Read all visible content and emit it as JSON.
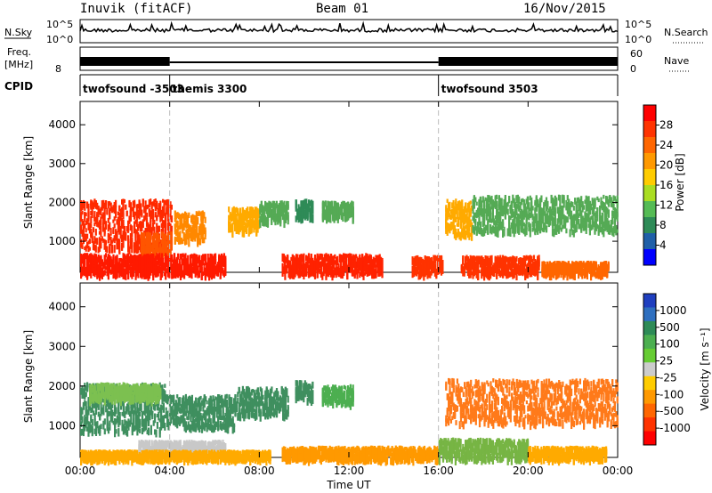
{
  "header": {
    "radar": "Inuvik (fitACF)",
    "beam": "Beam 01",
    "date": "16/Nov/2015"
  },
  "noise_panel": {
    "left_label": "N.Sky",
    "right_label": "N.Search",
    "left_ticks": [
      "10^5",
      "10^0"
    ],
    "right_ticks": [
      "10^5",
      "10^0"
    ]
  },
  "freq_panel": {
    "left_label_1": "Freq.",
    "left_label_2": "[MHz]",
    "right_label": "Nave",
    "left_ticks": [
      "8"
    ],
    "right_ticks": [
      "60",
      "0"
    ]
  },
  "cpid_panel": {
    "label": "CPID",
    "segments": [
      {
        "name": "twofsound -3503",
        "start_hour": 0,
        "end_hour": 4
      },
      {
        "name": "themis 3300",
        "start_hour": 4,
        "end_hour": 16
      },
      {
        "name": "twofsound 3503",
        "start_hour": 16,
        "end_hour": 24
      }
    ]
  },
  "chart_data": [
    {
      "type": "heatmap",
      "name": "power",
      "ylabel": "Slant Range [km]",
      "xlabel": "",
      "x_range_hours": [
        0,
        24
      ],
      "ylim": [
        200,
        4600
      ],
      "yticks": [
        "1000",
        "2000",
        "3000",
        "4000"
      ],
      "colorbar": {
        "label": "Power [dB]",
        "ticks": [
          "28",
          "24",
          "20",
          "16",
          "12",
          "8",
          "4"
        ],
        "colors_top_to_bottom": [
          "#ff0000",
          "#ff3300",
          "#ff6600",
          "#ff9900",
          "#ffcc00",
          "#aadd22",
          "#55bb55",
          "#2e8b57",
          "#1f5fa8",
          "#0000ff"
        ]
      },
      "echo_regions": [
        {
          "t0": 0.0,
          "t1": 4.1,
          "r0": 850,
          "r1": 2100,
          "color": "#ff2a00"
        },
        {
          "t0": 2.7,
          "t1": 4.1,
          "r0": 700,
          "r1": 1250,
          "color": "#ff5500"
        },
        {
          "t0": 0.0,
          "t1": 6.5,
          "r0": 200,
          "r1": 700,
          "color": "#ff1a00"
        },
        {
          "t0": 4.2,
          "t1": 5.6,
          "r0": 1050,
          "r1": 1800,
          "color": "#ff8800"
        },
        {
          "t0": 6.6,
          "t1": 8.0,
          "r0": 1300,
          "r1": 1900,
          "color": "#ffaa00"
        },
        {
          "t0": 8.0,
          "t1": 9.3,
          "r0": 1550,
          "r1": 2050,
          "color": "#55aa55"
        },
        {
          "t0": 9.6,
          "t1": 10.4,
          "r0": 1650,
          "r1": 2100,
          "color": "#2e8b57"
        },
        {
          "t0": 10.8,
          "t1": 12.2,
          "r0": 1650,
          "r1": 2050,
          "color": "#55aa55"
        },
        {
          "t0": 9.0,
          "t1": 13.5,
          "r0": 200,
          "r1": 700,
          "color": "#ff2200"
        },
        {
          "t0": 14.8,
          "t1": 16.2,
          "r0": 200,
          "r1": 650,
          "color": "#ff3300"
        },
        {
          "t0": 16.3,
          "t1": 17.5,
          "r0": 1200,
          "r1": 2100,
          "color": "#ffaa00"
        },
        {
          "t0": 17.5,
          "t1": 24.0,
          "r0": 1300,
          "r1": 2200,
          "color": "#55aa55"
        },
        {
          "t0": 17.0,
          "t1": 20.5,
          "r0": 200,
          "r1": 650,
          "color": "#ff3300"
        },
        {
          "t0": 20.6,
          "t1": 23.6,
          "r0": 200,
          "r1": 500,
          "color": "#ff6600"
        }
      ]
    },
    {
      "type": "heatmap",
      "name": "velocity",
      "ylabel": "Slant Range [km]",
      "xlabel": "Time UT",
      "x_range_hours": [
        0,
        24
      ],
      "xticks": [
        "00:00",
        "04:00",
        "08:00",
        "12:00",
        "16:00",
        "20:00",
        "00:00"
      ],
      "ylim": [
        200,
        4600
      ],
      "yticks": [
        "1000",
        "2000",
        "3000",
        "4000"
      ],
      "colorbar": {
        "label": "Velocity [m s⁻¹]",
        "ticks": [
          "1000",
          "500",
          "100",
          "25",
          "-25",
          "-100",
          "-500",
          "-1000"
        ],
        "colors_top_to_bottom": [
          "#1f3fbf",
          "#2e6fbf",
          "#2e8b57",
          "#4caf50",
          "#66cc33",
          "#cccccc",
          "#ffcc00",
          "#ff9900",
          "#ff6600",
          "#ff3300",
          "#ff0000"
        ]
      },
      "echo_regions": [
        {
          "t0": 0.0,
          "t1": 3.8,
          "r0": 900,
          "r1": 2100,
          "color": "#3f8f5f"
        },
        {
          "t0": 0.4,
          "t1": 3.6,
          "r0": 1700,
          "r1": 2100,
          "color": "#7cc050"
        },
        {
          "t0": 3.8,
          "t1": 7.0,
          "r0": 1000,
          "r1": 1800,
          "color": "#3f8f5f"
        },
        {
          "t0": 7.0,
          "t1": 9.3,
          "r0": 1300,
          "r1": 2000,
          "color": "#3f8f5f"
        },
        {
          "t0": 9.6,
          "t1": 10.4,
          "r0": 1700,
          "r1": 2150,
          "color": "#3f8f5f"
        },
        {
          "t0": 10.8,
          "t1": 12.2,
          "r0": 1600,
          "r1": 2050,
          "color": "#4caf50"
        },
        {
          "t0": 2.6,
          "t1": 6.5,
          "r0": 350,
          "r1": 650,
          "color": "#c8c8c8"
        },
        {
          "t0": 0.0,
          "t1": 8.5,
          "r0": 200,
          "r1": 400,
          "color": "#ffaa00"
        },
        {
          "t0": 9.0,
          "t1": 16.0,
          "r0": 200,
          "r1": 500,
          "color": "#ff9900"
        },
        {
          "t0": 16.3,
          "t1": 24.0,
          "r0": 1100,
          "r1": 2200,
          "color": "#ff7a1a"
        },
        {
          "t0": 16.0,
          "t1": 20.0,
          "r0": 200,
          "r1": 700,
          "color": "#77b544"
        },
        {
          "t0": 20.0,
          "t1": 23.5,
          "r0": 200,
          "r1": 500,
          "color": "#ffaa00"
        }
      ]
    }
  ]
}
